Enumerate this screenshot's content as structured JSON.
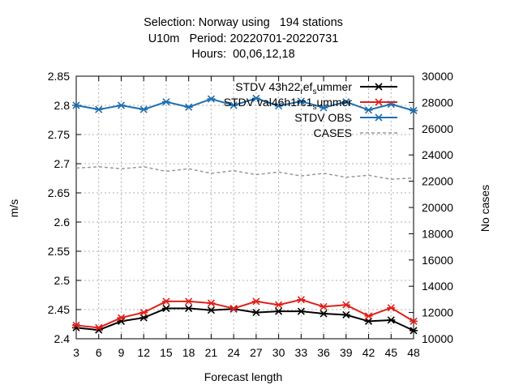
{
  "chart_data": {
    "type": "line",
    "title_lines": [
      "Selection: Norway using   194 stations",
      "U10m   Period: 20220701-20220731",
      "Hours:  00,06,12,18"
    ],
    "xlabel": "Forecast length",
    "ylabel": "m/s",
    "y2label": "No cases",
    "x": [
      3,
      6,
      9,
      12,
      15,
      18,
      21,
      24,
      27,
      30,
      33,
      36,
      39,
      42,
      45,
      48
    ],
    "xlim": [
      3,
      48
    ],
    "ylim": [
      2.4,
      2.85
    ],
    "y2lim": [
      10000,
      30000
    ],
    "yticks": [
      "2.4",
      "2.45",
      "2.5",
      "2.55",
      "2.6",
      "2.65",
      "2.7",
      "2.75",
      "2.8",
      "2.85"
    ],
    "y2ticks": [
      "10000",
      "12000",
      "14000",
      "16000",
      "18000",
      "20000",
      "22000",
      "24000",
      "26000",
      "28000",
      "30000"
    ],
    "grid": true,
    "legend_position": "top-right",
    "series": [
      {
        "name": "STDV 43h22_ref_summer",
        "name_main": "STDV 43h22",
        "name_sub1": "r",
        "name_mid": "ef",
        "name_sub2": "s",
        "name_end": "ummer",
        "color": "#000000",
        "marker": "x-star",
        "axis": "y",
        "values": [
          2.419,
          2.415,
          2.43,
          2.436,
          2.452,
          2.452,
          2.449,
          2.451,
          2.445,
          2.447,
          2.447,
          2.443,
          2.441,
          2.43,
          2.432,
          2.414
        ]
      },
      {
        "name": "STDV val46h1rc1_summer",
        "name_main": "STDV val46h1rc1",
        "name_sub1": "s",
        "name_end": "ummer",
        "color": "#e0201a",
        "marker": "x-star",
        "axis": "y",
        "values": [
          2.423,
          2.419,
          2.436,
          2.445,
          2.464,
          2.464,
          2.461,
          2.452,
          2.464,
          2.458,
          2.467,
          2.455,
          2.458,
          2.439,
          2.453,
          2.43
        ]
      },
      {
        "name": "STDV OBS",
        "color": "#1f6faf",
        "marker": "x-star",
        "axis": "y",
        "values": [
          2.8,
          2.793,
          2.8,
          2.793,
          2.806,
          2.797,
          2.811,
          2.8,
          2.812,
          2.799,
          2.807,
          2.796,
          2.806,
          2.792,
          2.802,
          2.791
        ]
      },
      {
        "name": "CASES",
        "color": "#999999",
        "dash": true,
        "axis": "y2",
        "values": [
          23000,
          23100,
          22950,
          23100,
          22750,
          22950,
          22600,
          22800,
          22500,
          22700,
          22400,
          22600,
          22300,
          22450,
          22150,
          22250
        ]
      }
    ]
  }
}
